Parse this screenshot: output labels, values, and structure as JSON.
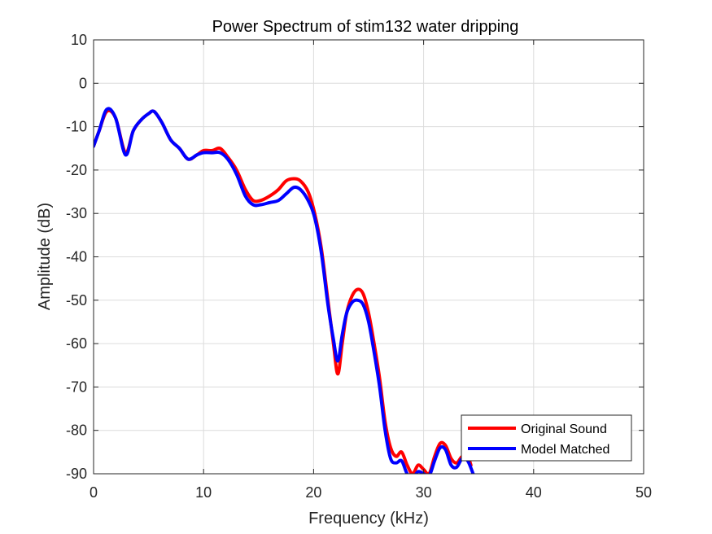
{
  "chart_data": {
    "type": "line",
    "title": "Power Spectrum of stim132 water dripping",
    "xlabel": "Frequency (kHz)",
    "ylabel": "Amplitude (dB)",
    "xlim": [
      0,
      50
    ],
    "ylim": [
      -90,
      10
    ],
    "xticks": [
      0,
      10,
      20,
      30,
      40,
      50
    ],
    "yticks": [
      10,
      0,
      -10,
      -20,
      -30,
      -40,
      -50,
      -60,
      -70,
      -80,
      -90
    ],
    "grid": true,
    "legend_position": "bottom-right",
    "series": [
      {
        "name": "Original Sound",
        "color": "#ff0000",
        "x": [
          0,
          0.5,
          1.2,
          2.0,
          2.9,
          3.6,
          4.3,
          5.0,
          5.5,
          6.2,
          7.0,
          7.8,
          8.6,
          9.4,
          10.0,
          10.8,
          11.5,
          12.2,
          13.0,
          13.8,
          14.5,
          15.2,
          16.0,
          16.8,
          17.5,
          18.2,
          18.8,
          19.5,
          20.1,
          20.7,
          21.3,
          21.8,
          22.2,
          22.6,
          23.0,
          23.5,
          24.0,
          24.5,
          25.0,
          25.5,
          26.0,
          26.5,
          27.0,
          27.5,
          28.0,
          28.5,
          29.0,
          29.5,
          30.0,
          30.5,
          31.0,
          31.5,
          32.0,
          32.5,
          33.0,
          33.5,
          34.0,
          34.3
        ],
        "values": [
          -14.5,
          -11,
          -6.5,
          -8,
          -16,
          -11,
          -8.5,
          -7,
          -6.5,
          -9,
          -13,
          -15,
          -17.5,
          -16.5,
          -15.5,
          -15.5,
          -15,
          -17,
          -20,
          -24.5,
          -27,
          -27,
          -26,
          -24.5,
          -22.5,
          -22,
          -22.5,
          -25,
          -30,
          -38,
          -50,
          -60,
          -67,
          -60,
          -53,
          -49,
          -47.5,
          -48.5,
          -53,
          -60,
          -68,
          -78,
          -84,
          -86,
          -85,
          -88,
          -90,
          -88,
          -89,
          -90,
          -86,
          -83,
          -83.5,
          -86.5,
          -87.5,
          -86,
          -86,
          -88
        ]
      },
      {
        "name": "Model Matched",
        "color": "#0000ff",
        "x": [
          0,
          0.5,
          1.2,
          2.0,
          2.9,
          3.6,
          4.3,
          5.0,
          5.5,
          6.2,
          7.0,
          7.8,
          8.6,
          9.4,
          10.0,
          10.8,
          11.5,
          12.2,
          13.0,
          13.8,
          14.5,
          15.2,
          16.0,
          16.8,
          17.5,
          18.2,
          18.8,
          19.5,
          20.1,
          20.7,
          21.3,
          21.8,
          22.2,
          22.6,
          23.0,
          23.5,
          24.0,
          24.5,
          25.0,
          25.5,
          26.0,
          26.5,
          27.0,
          27.5,
          28.0,
          28.5,
          29.0,
          29.5,
          30.0,
          30.5,
          31.0,
          31.5,
          32.0,
          32.5,
          33.0,
          33.5,
          34.0,
          34.5
        ],
        "values": [
          -14.5,
          -11,
          -6,
          -8,
          -16.5,
          -11,
          -8.5,
          -7,
          -6.5,
          -9,
          -13,
          -15,
          -17.5,
          -16.5,
          -16,
          -16,
          -16,
          -17.5,
          -21,
          -26,
          -28,
          -28,
          -27.5,
          -27,
          -25.5,
          -24,
          -24.5,
          -27,
          -31,
          -39,
          -51,
          -59,
          -64,
          -58,
          -53,
          -50.5,
          -50,
          -51,
          -55,
          -62,
          -70,
          -80,
          -86.5,
          -87.5,
          -87,
          -90,
          -91,
          -89.5,
          -90,
          -90.5,
          -87,
          -84,
          -84.5,
          -88,
          -88.5,
          -86.5,
          -87,
          -90
        ]
      }
    ]
  }
}
